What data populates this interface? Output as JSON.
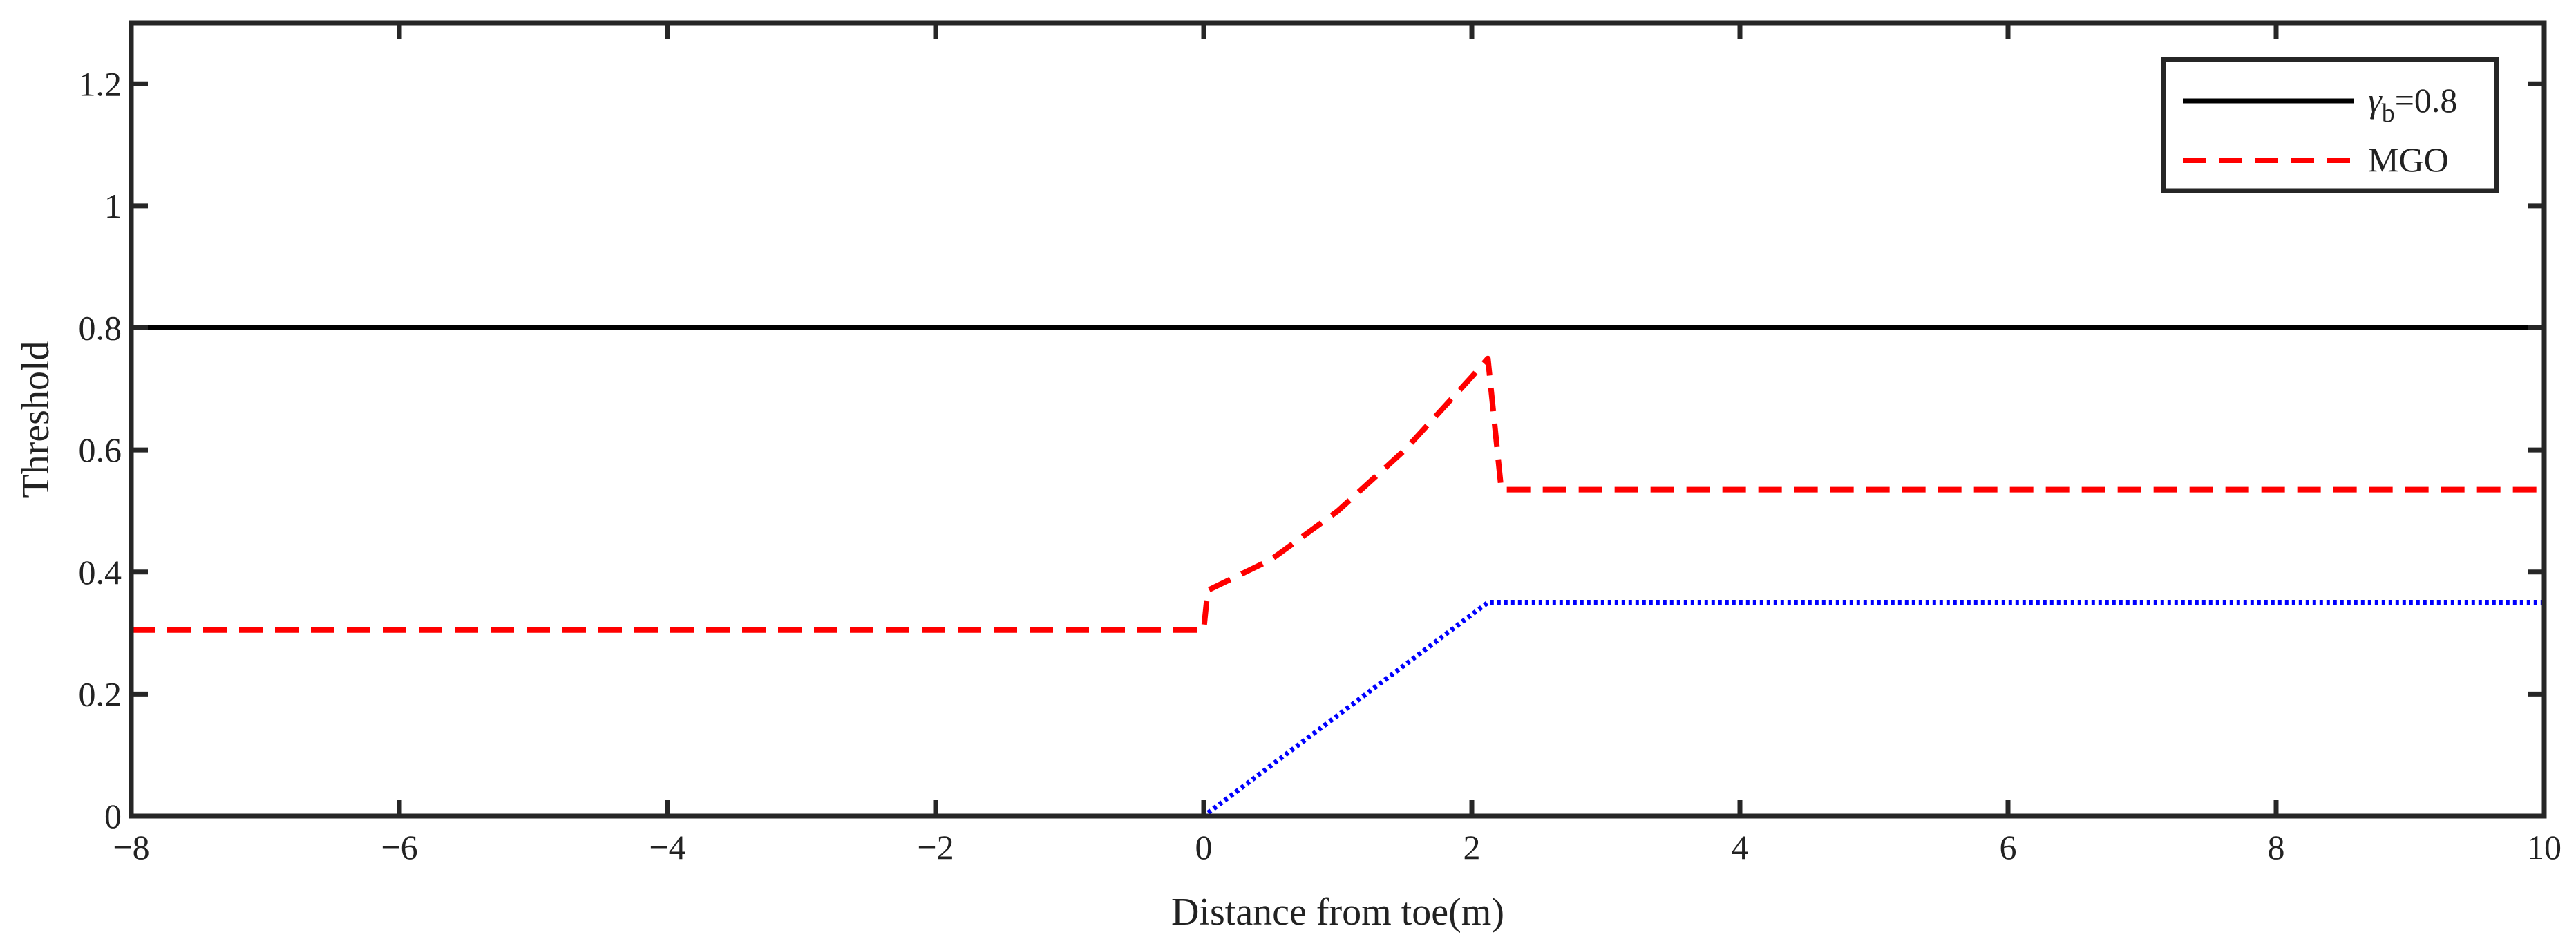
{
  "chart_data": {
    "type": "line",
    "title": "",
    "xlabel": "Distance from toe(m)",
    "ylabel": "Threshold",
    "xlim": [
      -8,
      10
    ],
    "ylim": [
      0,
      1.3
    ],
    "xticks": [
      -8,
      -6,
      -4,
      -2,
      0,
      2,
      4,
      6,
      8,
      10
    ],
    "xtick_labels": [
      "−8",
      "−6",
      "−4",
      "−2",
      "0",
      "2",
      "4",
      "6",
      "8",
      "10"
    ],
    "yticks": [
      0,
      0.2,
      0.4,
      0.6,
      0.8,
      1,
      1.2
    ],
    "ytick_labels": [
      "0",
      "0.2",
      "0.4",
      "0.6",
      "0.8",
      "1",
      "1.2"
    ],
    "grid": false,
    "legend_position": "top-right",
    "series": [
      {
        "name": "γb=0.8",
        "legend_main": "γ",
        "legend_sub": "b",
        "legend_rest": "=0.8",
        "style": "solid",
        "color": "#000000",
        "x": [
          -8,
          10
        ],
        "y": [
          0.8,
          0.8
        ]
      },
      {
        "name": "MGO",
        "style": "dashed",
        "color": "#ff0000",
        "x": [
          -8,
          0,
          0.03,
          0.5,
          1.0,
          1.5,
          2.0,
          2.12,
          2.22,
          10
        ],
        "y": [
          0.305,
          0.305,
          0.37,
          0.42,
          0.5,
          0.6,
          0.72,
          0.75,
          0.535,
          0.535
        ]
      },
      {
        "name": "",
        "style": "dotted",
        "color": "#0000ff",
        "x": [
          -8,
          0,
          2.12,
          10
        ],
        "y": [
          0,
          0,
          0.35,
          0.35
        ]
      }
    ]
  }
}
